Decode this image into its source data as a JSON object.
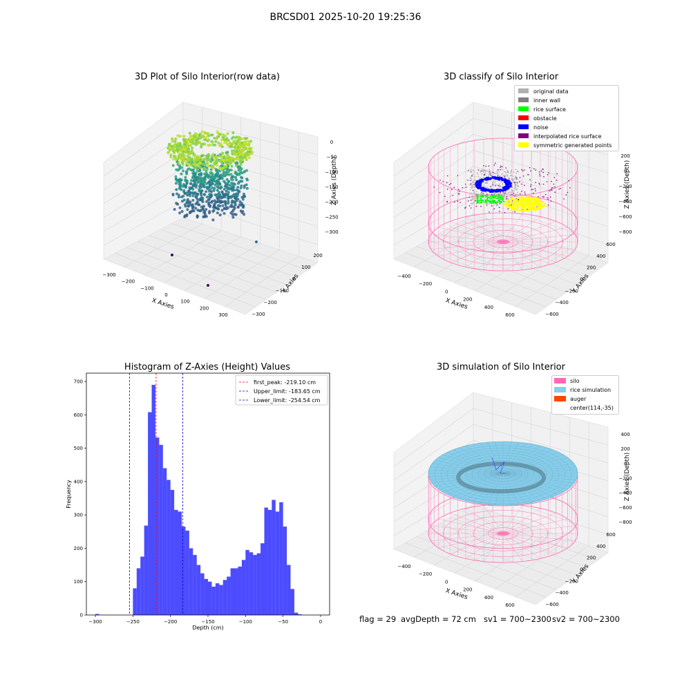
{
  "figure": {
    "suptitle": "BRCSD01 2025-10-20 19:25:36",
    "status": {
      "flag": "flag = 29",
      "avg_depth": "avgDepth = 72 cm",
      "sv1": "sv1 = 700~2300",
      "sv2": "sv2 = 700~2300"
    }
  },
  "colors": {
    "viridis_low": "#440154",
    "viridis_mid": "#21918c",
    "viridis_high": "#d2e21b",
    "silo": "#ff69b4",
    "rice_simulation": "#87ceeb",
    "auger": "#ff4500",
    "hist_bar": "#0000ff",
    "first_peak_line": "#ff0000",
    "limit_line": "#0000cc"
  },
  "chart_data": [
    {
      "type": "scatter",
      "title": "3D Plot of Silo Interior(row data)",
      "xlabel": "X Axies",
      "ylabel": "Y Axies",
      "zlabel": "Z Axies (Depth)",
      "xticks": [
        -300,
        -200,
        -100,
        0,
        100,
        200,
        300
      ],
      "yticks": [
        -300,
        -200,
        -100,
        0,
        100,
        200
      ],
      "zticks": [
        0,
        -50,
        -100,
        -150,
        -200,
        -250,
        -300
      ],
      "colormap": "viridis"
    },
    {
      "type": "scatter",
      "title": "3D classify of Silo Interior",
      "xlabel": "X Axies",
      "ylabel": "Y Axies",
      "zlabel": "Z Axies (Depth)",
      "xticks": [
        -400,
        -200,
        0,
        200,
        400,
        600
      ],
      "yticks": [
        -600,
        -400,
        -200,
        0,
        200,
        400,
        600
      ],
      "zticks": [
        200,
        0,
        -200,
        -400,
        -600,
        -800
      ],
      "legend_position": "upper-right",
      "legend": [
        {
          "label": "original data",
          "color": "#b0b0b0"
        },
        {
          "label": "inner wall",
          "color": "#808080"
        },
        {
          "label": "rice surface",
          "color": "#00ff00"
        },
        {
          "label": "obstacle",
          "color": "#ff0000"
        },
        {
          "label": "noise",
          "color": "#0000ff"
        },
        {
          "label": "interpolated rice surface",
          "color": "#800080"
        },
        {
          "label": "symmetric generated points",
          "color": "#ffff00"
        }
      ]
    },
    {
      "type": "bar",
      "title": "Histogram of Z-Axies (Height) Values",
      "xlabel": "Depth (cm)",
      "ylabel": "Frequency",
      "xlim": [
        -312,
        12
      ],
      "ylim": [
        0,
        725
      ],
      "xticks": [
        -300,
        -250,
        -200,
        -150,
        -100,
        -50,
        0
      ],
      "yticks": [
        0,
        100,
        200,
        300,
        400,
        500,
        600,
        700
      ],
      "bin_width": 5,
      "bins": [
        [
          -297.5,
          3
        ],
        [
          -247.5,
          80
        ],
        [
          -242.5,
          140
        ],
        [
          -237.5,
          175
        ],
        [
          -232.5,
          268
        ],
        [
          -227.5,
          608
        ],
        [
          -222.5,
          690
        ],
        [
          -217.5,
          532
        ],
        [
          -212.5,
          510
        ],
        [
          -207.5,
          440
        ],
        [
          -202.5,
          405
        ],
        [
          -197.5,
          375
        ],
        [
          -192.5,
          315
        ],
        [
          -187.5,
          310
        ],
        [
          -182.5,
          265
        ],
        [
          -177.5,
          253
        ],
        [
          -172.5,
          200
        ],
        [
          -167.5,
          180
        ],
        [
          -162.5,
          150
        ],
        [
          -157.5,
          125
        ],
        [
          -152.5,
          108
        ],
        [
          -147.5,
          100
        ],
        [
          -142.5,
          85
        ],
        [
          -137.5,
          95
        ],
        [
          -132.5,
          90
        ],
        [
          -127.5,
          105
        ],
        [
          -122.5,
          115
        ],
        [
          -117.5,
          140
        ],
        [
          -112.5,
          140
        ],
        [
          -107.5,
          145
        ],
        [
          -102.5,
          165
        ],
        [
          -97.5,
          195
        ],
        [
          -92.5,
          188
        ],
        [
          -87.5,
          180
        ],
        [
          -82.5,
          185
        ],
        [
          -77.5,
          215
        ],
        [
          -72.5,
          322
        ],
        [
          -67.5,
          315
        ],
        [
          -62.5,
          345
        ],
        [
          -57.5,
          310
        ],
        [
          -52.5,
          338
        ],
        [
          -47.5,
          265
        ],
        [
          -42.5,
          150
        ],
        [
          -37.5,
          78
        ],
        [
          -32.5,
          7
        ],
        [
          -27.5,
          2
        ]
      ],
      "vlines": [
        {
          "label": "first_peak: -219.10 cm",
          "x": -219.1,
          "color": "#ff0000"
        },
        {
          "label": "Upper_limit: -183.65 cm",
          "x": -183.65,
          "color": "#0000cc"
        },
        {
          "label": "Lower_limit: -254.54 cm",
          "x": -254.54,
          "color": "#0000cc"
        }
      ],
      "legend_position": "upper-right"
    },
    {
      "type": "scatter",
      "title": "3D simulation of Silo Interior",
      "xlabel": "X Axies",
      "ylabel": "Y Axies",
      "zlabel": "Z Axies (Depth)",
      "xticks": [
        -400,
        -200,
        0,
        200,
        400,
        600
      ],
      "yticks": [
        -600,
        -400,
        -200,
        0,
        200,
        400,
        600
      ],
      "zticks": [
        400,
        200,
        0,
        -200,
        -400,
        -600,
        -800
      ],
      "legend_position": "upper-right",
      "legend": [
        {
          "label": "silo",
          "color": "#ff69b4"
        },
        {
          "label": "rice simulation",
          "color": "#87ceeb"
        },
        {
          "label": "auger",
          "color": "#ff4500"
        },
        {
          "label": "center(114,-35)",
          "color": ""
        }
      ]
    }
  ]
}
